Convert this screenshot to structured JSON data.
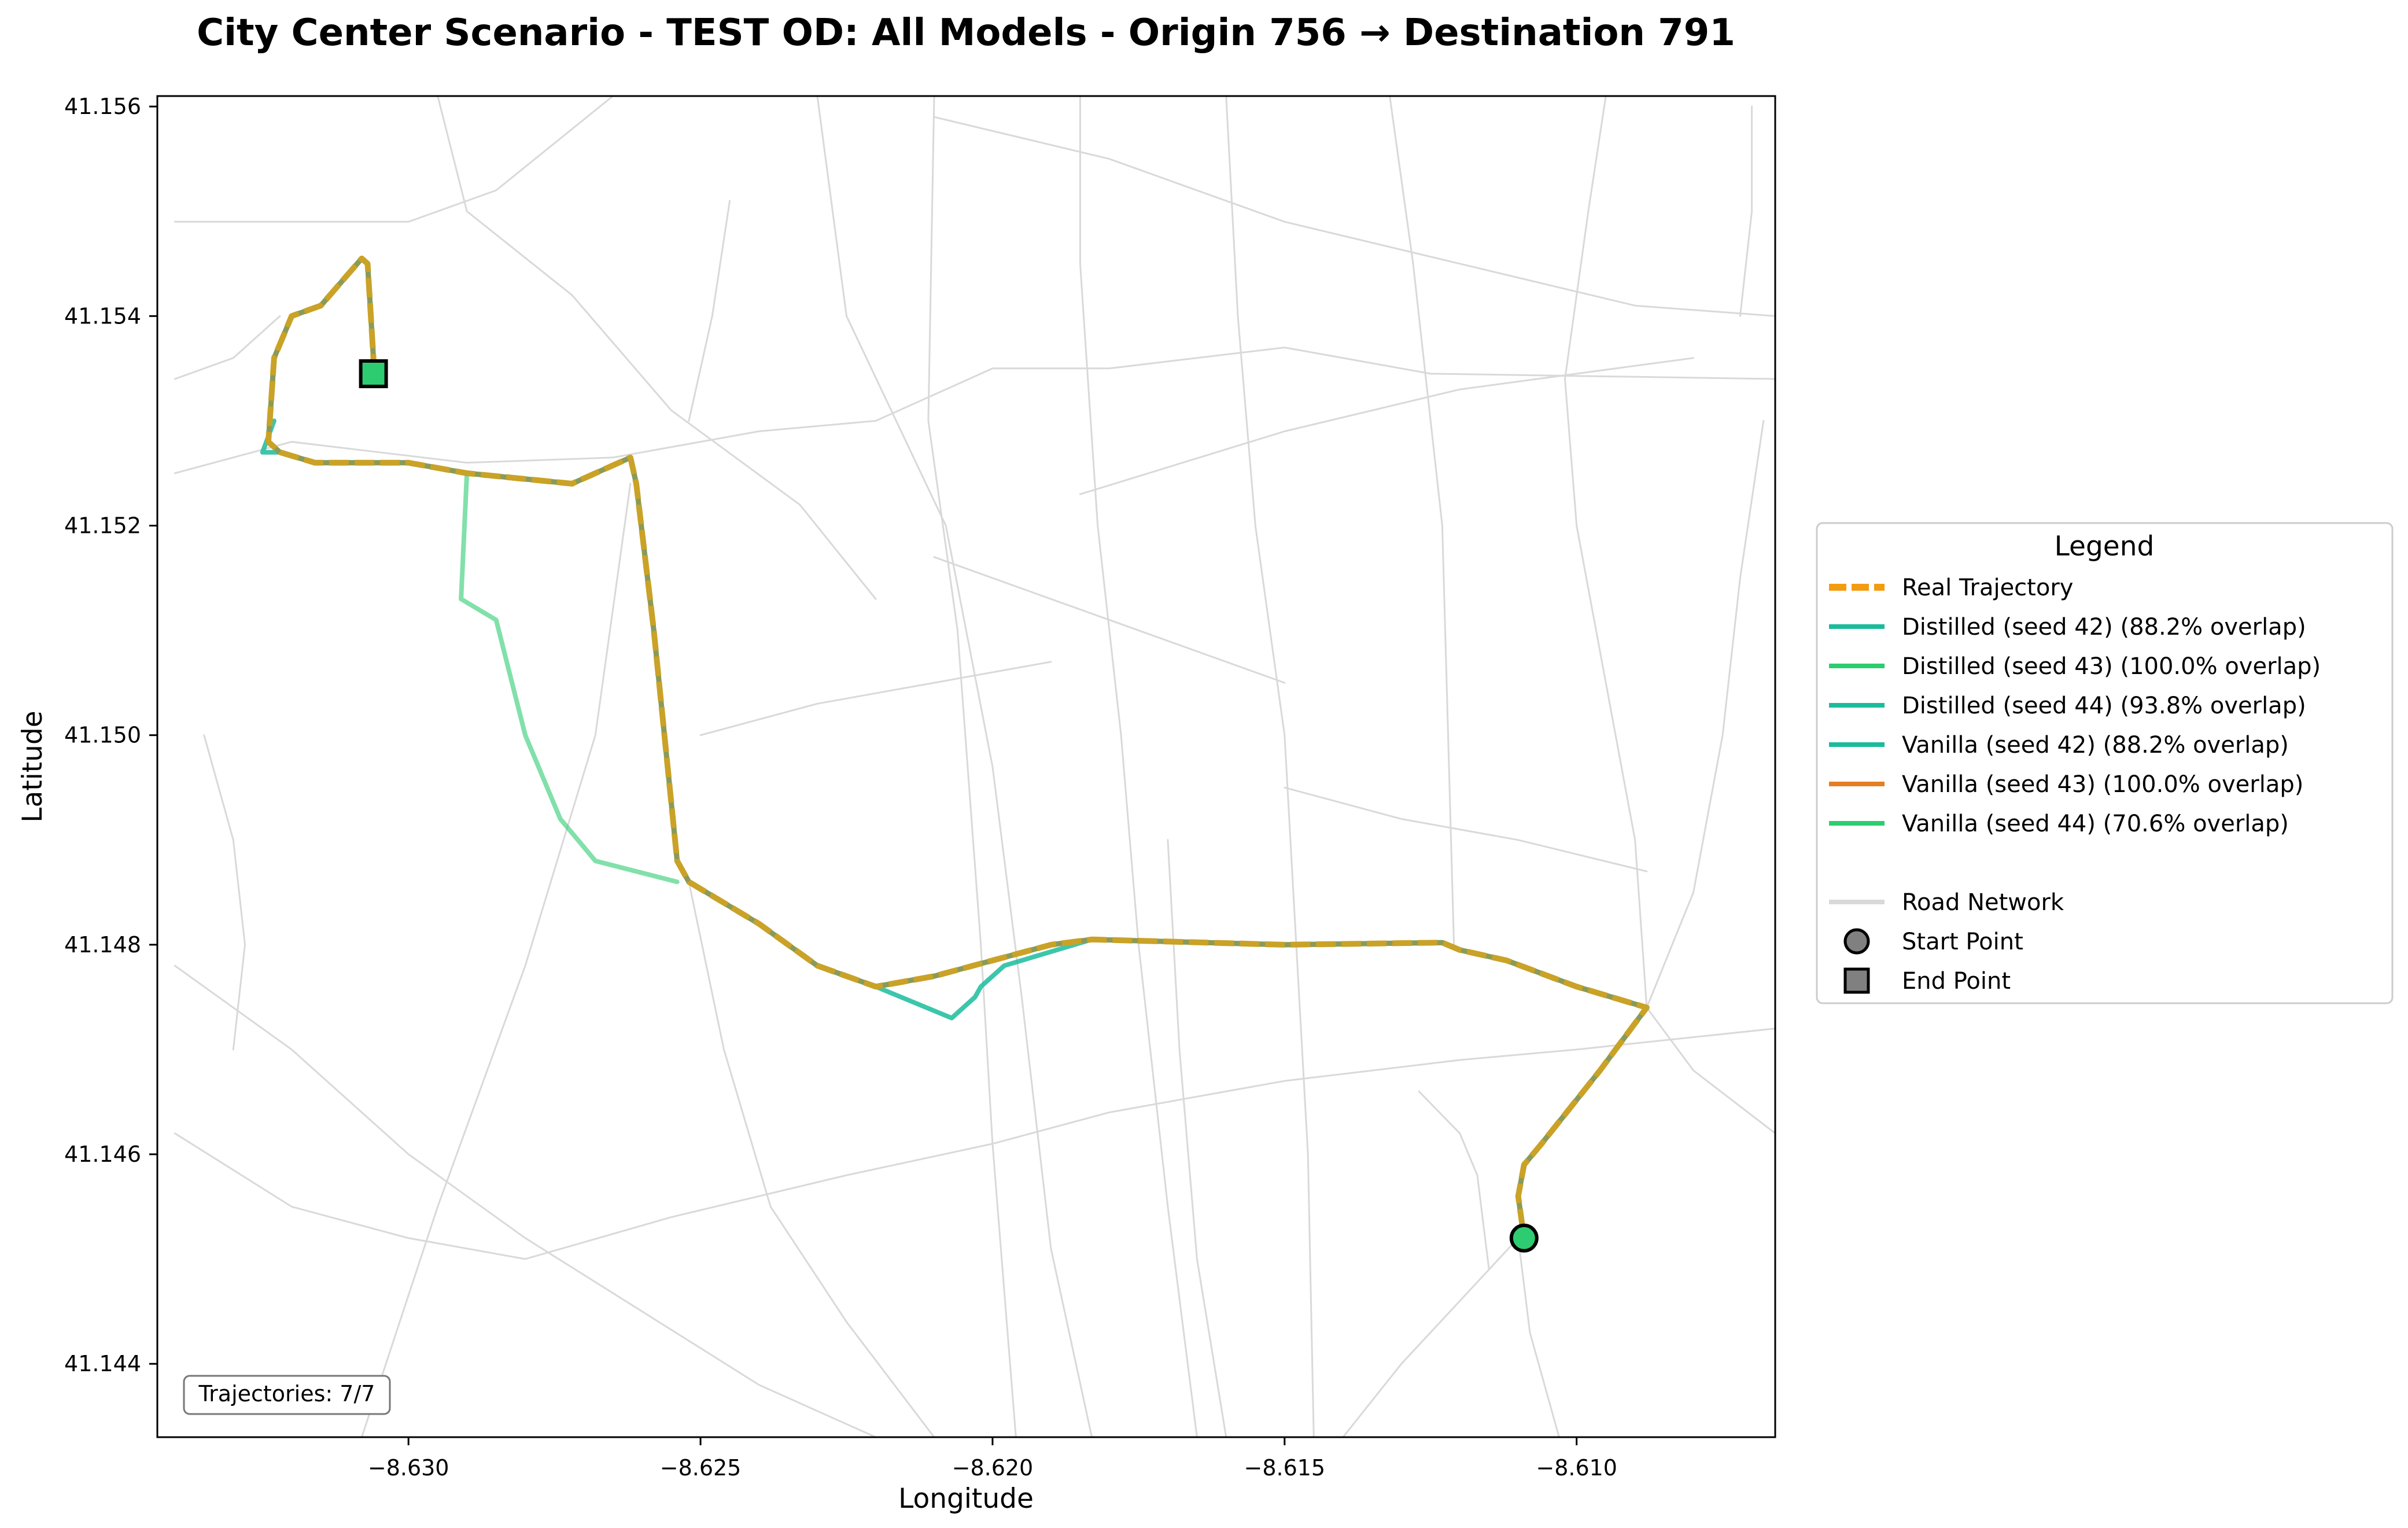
{
  "chart_data": {
    "type": "line",
    "title": "City Center Scenario - TEST OD: All Models - Origin 756 → Destination 791",
    "xlabel": "Longitude",
    "ylabel": "Latitude",
    "xlim": [
      -8.6343,
      -8.6066
    ],
    "ylim": [
      41.1433,
      41.1561
    ],
    "x_ticks": [
      -8.63,
      -8.625,
      -8.62,
      -8.615,
      -8.61
    ],
    "x_tick_labels": [
      "−8.630",
      "−8.625",
      "−8.620",
      "−8.615",
      "−8.610"
    ],
    "y_ticks": [
      41.144,
      41.146,
      41.148,
      41.15,
      41.152,
      41.154,
      41.156
    ],
    "y_tick_labels": [
      "41.144",
      "41.146",
      "41.148",
      "41.150",
      "41.152",
      "41.154",
      "41.156"
    ],
    "grid": false,
    "legend": {
      "title": "Legend",
      "placement": "outside-right",
      "entries": [
        {
          "label": "Real Trajectory",
          "color": "#f39c12",
          "style": "dashed"
        },
        {
          "label": "Distilled (seed 42) (88.2% overlap)",
          "color": "#1abc9c",
          "style": "solid"
        },
        {
          "label": "Distilled (seed 43) (100.0% overlap)",
          "color": "#2ecc71",
          "style": "solid"
        },
        {
          "label": "Distilled (seed 44) (93.8% overlap)",
          "color": "#1abc9c",
          "style": "solid"
        },
        {
          "label": "Vanilla (seed 42) (88.2% overlap)",
          "color": "#1abc9c",
          "style": "solid"
        },
        {
          "label": "Vanilla (seed 43) (100.0% overlap)",
          "color": "#e67e22",
          "style": "solid"
        },
        {
          "label": "Vanilla (seed 44) (70.6% overlap)",
          "color": "#2ecc71",
          "style": "solid"
        },
        {
          "label": "Road Network",
          "color": "#d9d9d9",
          "style": "solid"
        },
        {
          "label": "Start Point",
          "color": "#808080",
          "style": "circle-marker"
        },
        {
          "label": "End Point",
          "color": "#808080",
          "style": "square-marker"
        }
      ]
    },
    "annotation": "Trajectories: 7/7",
    "start_point": {
      "lon": -8.6109,
      "lat": 41.1452,
      "color": "#2ecc71"
    },
    "end_point": {
      "lon": -8.6306,
      "lat": 41.15345,
      "color": "#2ecc71"
    },
    "main_route": [
      [
        -8.6306,
        41.15345
      ],
      [
        -8.6306,
        41.1536
      ],
      [
        -8.6307,
        41.1545
      ],
      [
        -8.6308,
        41.15455
      ],
      [
        -8.6315,
        41.1541
      ],
      [
        -8.632,
        41.154
      ],
      [
        -8.6323,
        41.1536
      ],
      [
        -8.6324,
        41.1528
      ],
      [
        -8.6322,
        41.1527
      ],
      [
        -8.6316,
        41.1526
      ],
      [
        -8.63,
        41.1526
      ],
      [
        -8.629,
        41.1525
      ],
      [
        -8.6272,
        41.1524
      ],
      [
        -8.6262,
        41.15265
      ],
      [
        -8.6261,
        41.1524
      ],
      [
        -8.6258,
        41.151
      ],
      [
        -8.6254,
        41.1488
      ],
      [
        -8.6252,
        41.1486
      ],
      [
        -8.624,
        41.1482
      ],
      [
        -8.623,
        41.1478
      ],
      [
        -8.622,
        41.1476
      ],
      [
        -8.621,
        41.1477
      ],
      [
        -8.619,
        41.148
      ],
      [
        -8.6183,
        41.14805
      ],
      [
        -8.615,
        41.148
      ],
      [
        -8.6123,
        41.14802
      ],
      [
        -8.612,
        41.14795
      ],
      [
        -8.6112,
        41.14785
      ],
      [
        -8.61,
        41.1476
      ],
      [
        -8.6088,
        41.1474
      ],
      [
        -8.6096,
        41.1468
      ],
      [
        -8.6106,
        41.1461
      ],
      [
        -8.6109,
        41.1459
      ],
      [
        -8.611,
        41.1456
      ],
      [
        -8.6109,
        41.1452
      ]
    ],
    "alt_route_west": [
      [
        -8.629,
        41.1525
      ],
      [
        -8.6291,
        41.1513
      ],
      [
        -8.6285,
        41.1511
      ],
      [
        -8.628,
        41.15
      ],
      [
        -8.6274,
        41.1492
      ],
      [
        -8.6268,
        41.1488
      ],
      [
        -8.6254,
        41.1486
      ]
    ],
    "alt_route_south": [
      [
        -8.622,
        41.1476
      ],
      [
        -8.6207,
        41.1473
      ],
      [
        -8.6203,
        41.1475
      ],
      [
        -8.6202,
        41.1476
      ],
      [
        -8.6198,
        41.1478
      ],
      [
        -8.6183,
        41.14805
      ]
    ],
    "alt_route_corner": [
      [
        -8.6323,
        41.153
      ],
      [
        -8.6325,
        41.1527
      ],
      [
        -8.6322,
        41.1527
      ]
    ],
    "road_network": [
      [
        [
          -8.634,
          41.1525
        ],
        [
          -8.632,
          41.1528
        ],
        [
          -8.629,
          41.1526
        ],
        [
          -8.6265,
          41.15265
        ],
        [
          -8.624,
          41.1529
        ],
        [
          -8.622,
          41.153
        ],
        [
          -8.62,
          41.1535
        ],
        [
          -8.618,
          41.1535
        ],
        [
          -8.615,
          41.1537
        ],
        [
          -8.6125,
          41.15345
        ],
        [
          -8.6066,
          41.1534
        ]
      ],
      [
        [
          -8.6295,
          41.1561
        ],
        [
          -8.629,
          41.155
        ],
        [
          -8.6272,
          41.1542
        ],
        [
          -8.6255,
          41.1531
        ],
        [
          -8.6233,
          41.1522
        ],
        [
          -8.622,
          41.1513
        ]
      ],
      [
        [
          -8.623,
          41.1561
        ],
        [
          -8.6225,
          41.154
        ],
        [
          -8.6208,
          41.152
        ],
        [
          -8.62,
          41.1497
        ],
        [
          -8.6195,
          41.1475
        ],
        [
          -8.619,
          41.1451
        ],
        [
          -8.6183,
          41.1433
        ]
      ],
      [
        [
          -8.621,
          41.1561
        ],
        [
          -8.6211,
          41.153
        ],
        [
          -8.6206,
          41.151
        ],
        [
          -8.6202,
          41.148
        ],
        [
          -8.62,
          41.1461
        ],
        [
          -8.6196,
          41.1433
        ]
      ],
      [
        [
          -8.6185,
          41.1561
        ],
        [
          -8.6185,
          41.1545
        ],
        [
          -8.6182,
          41.152
        ],
        [
          -8.6178,
          41.15
        ],
        [
          -8.6175,
          41.148
        ],
        [
          -8.617,
          41.1455
        ],
        [
          -8.6165,
          41.1433
        ]
      ],
      [
        [
          -8.634,
          41.1549
        ],
        [
          -8.632,
          41.1549
        ],
        [
          -8.63,
          41.1549
        ],
        [
          -8.6285,
          41.1552
        ],
        [
          -8.6265,
          41.1561
        ]
      ],
      [
        [
          -8.621,
          41.1559
        ],
        [
          -8.618,
          41.1555
        ],
        [
          -8.615,
          41.1549
        ],
        [
          -8.612,
          41.1545
        ],
        [
          -8.609,
          41.1541
        ],
        [
          -8.6066,
          41.154
        ]
      ],
      [
        [
          -8.6185,
          41.1523
        ],
        [
          -8.615,
          41.1529
        ],
        [
          -8.612,
          41.1533
        ],
        [
          -8.608,
          41.1536
        ]
      ],
      [
        [
          -8.634,
          41.1478
        ],
        [
          -8.632,
          41.147
        ],
        [
          -8.63,
          41.146
        ],
        [
          -8.628,
          41.1452
        ],
        [
          -8.626,
          41.1445
        ],
        [
          -8.624,
          41.1438
        ],
        [
          -8.622,
          41.1433
        ]
      ],
      [
        [
          -8.634,
          41.1462
        ],
        [
          -8.632,
          41.1455
        ],
        [
          -8.63,
          41.1452
        ],
        [
          -8.628,
          41.145
        ],
        [
          -8.6255,
          41.1454
        ],
        [
          -8.6225,
          41.1458
        ],
        [
          -8.62,
          41.1461
        ],
        [
          -8.618,
          41.1464
        ],
        [
          -8.615,
          41.1467
        ],
        [
          -8.612,
          41.1469
        ],
        [
          -8.61,
          41.147
        ],
        [
          -8.6066,
          41.1472
        ]
      ],
      [
        [
          -8.6308,
          41.1433
        ],
        [
          -8.6295,
          41.1455
        ],
        [
          -8.628,
          41.1478
        ],
        [
          -8.6268,
          41.15
        ],
        [
          -8.6262,
          41.1524
        ]
      ],
      [
        [
          -8.6252,
          41.1486
        ],
        [
          -8.6246,
          41.147
        ],
        [
          -8.6238,
          41.1455
        ],
        [
          -8.6225,
          41.1444
        ],
        [
          -8.621,
          41.1433
        ]
      ],
      [
        [
          -8.616,
          41.1561
        ],
        [
          -8.6158,
          41.154
        ],
        [
          -8.6155,
          41.152
        ],
        [
          -8.615,
          41.15
        ],
        [
          -8.6148,
          41.148
        ],
        [
          -8.6146,
          41.146
        ],
        [
          -8.6145,
          41.1433
        ]
      ],
      [
        [
          -8.6132,
          41.1561
        ],
        [
          -8.6128,
          41.1545
        ],
        [
          -8.6123,
          41.152
        ],
        [
          -8.6122,
          41.15
        ],
        [
          -8.6121,
          41.148
        ]
      ],
      [
        [
          -8.611,
          41.1452
        ],
        [
          -8.612,
          41.1446
        ],
        [
          -8.613,
          41.144
        ],
        [
          -8.614,
          41.1433
        ]
      ],
      [
        [
          -8.611,
          41.1452
        ],
        [
          -8.6108,
          41.1443
        ],
        [
          -8.6103,
          41.1433
        ]
      ],
      [
        [
          -8.6088,
          41.1474
        ],
        [
          -8.609,
          41.149
        ],
        [
          -8.6095,
          41.1505
        ],
        [
          -8.61,
          41.152
        ],
        [
          -8.6102,
          41.1534
        ],
        [
          -8.6098,
          41.155
        ],
        [
          -8.6095,
          41.1561
        ]
      ],
      [
        [
          -8.6088,
          41.1474
        ],
        [
          -8.608,
          41.1468
        ],
        [
          -8.6066,
          41.1462
        ]
      ],
      [
        [
          -8.6088,
          41.1474
        ],
        [
          -8.608,
          41.1485
        ],
        [
          -8.6075,
          41.15
        ],
        [
          -8.6072,
          41.1515
        ],
        [
          -8.6068,
          41.153
        ]
      ],
      [
        [
          -8.6115,
          41.1449
        ],
        [
          -8.6117,
          41.1458
        ],
        [
          -8.612,
          41.1462
        ],
        [
          -8.6127,
          41.1466
        ]
      ],
      [
        [
          -8.615,
          41.1495
        ],
        [
          -8.613,
          41.1492
        ],
        [
          -8.611,
          41.149
        ],
        [
          -8.6088,
          41.1487
        ]
      ],
      [
        [
          -8.615,
          41.1505
        ],
        [
          -8.617,
          41.1509
        ],
        [
          -8.619,
          41.1513
        ],
        [
          -8.621,
          41.1517
        ]
      ],
      [
        [
          -8.625,
          41.15
        ],
        [
          -8.623,
          41.1503
        ],
        [
          -8.621,
          41.1505
        ],
        [
          -8.619,
          41.1507
        ]
      ],
      [
        [
          -8.6245,
          41.1551
        ],
        [
          -8.6248,
          41.154
        ],
        [
          -8.6252,
          41.153
        ]
      ],
      [
        [
          -8.6322,
          41.154
        ],
        [
          -8.633,
          41.1536
        ],
        [
          -8.634,
          41.1534
        ]
      ],
      [
        [
          -8.6335,
          41.15
        ],
        [
          -8.633,
          41.149
        ],
        [
          -8.6328,
          41.148
        ],
        [
          -8.633,
          41.147
        ]
      ],
      [
        [
          -8.607,
          41.156
        ],
        [
          -8.607,
          41.155
        ],
        [
          -8.6072,
          41.154
        ]
      ],
      [
        [
          -8.617,
          41.149
        ],
        [
          -8.6168,
          41.147
        ],
        [
          -8.6165,
          41.145
        ],
        [
          -8.616,
          41.1433
        ]
      ]
    ]
  }
}
